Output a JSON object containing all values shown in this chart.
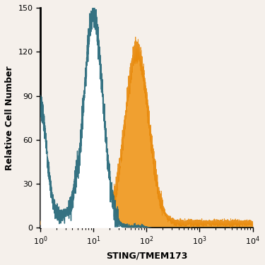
{
  "title": "",
  "xlabel": "STING/TMEM173",
  "ylabel": "Relative Cell Number",
  "xlim_log": [
    1,
    10000
  ],
  "ylim": [
    0,
    150
  ],
  "yticks": [
    0,
    30,
    60,
    90,
    120,
    150
  ],
  "xticks_log": [
    1,
    10,
    100,
    1000,
    10000
  ],
  "isotype_color": "#2a6b7c",
  "antibody_color": "#e8890a",
  "antibody_fill": "#f0a030",
  "background_color": "#f5f0eb",
  "isotype_peak_log_x": 1.0,
  "isotype_peak_y": 145,
  "isotype_sigma": 0.18,
  "antibody_peak_log_x": 1.82,
  "antibody_peak_y": 118,
  "antibody_sigma": 0.22,
  "left_wall_x": 1.0,
  "left_wall_y": 75
}
